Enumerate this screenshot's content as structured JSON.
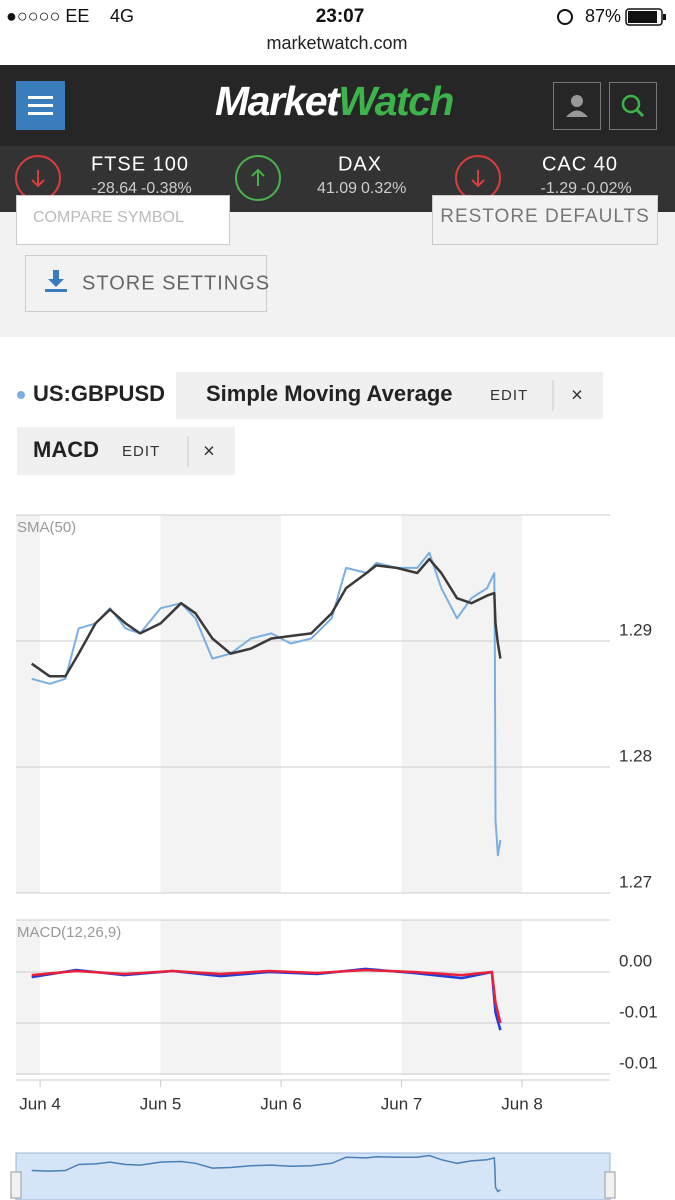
{
  "status_bar": {
    "carrier": "●○○○○ EE",
    "network": "4G",
    "time": "23:07",
    "battery": "87%"
  },
  "url": "marketwatch.com",
  "header": {
    "logo_market": "Market",
    "logo_watch": "Watch"
  },
  "indices": [
    {
      "name": "FTSE 100",
      "change": "-28.64",
      "percent": "-0.38%",
      "direction": "down"
    },
    {
      "name": "DAX",
      "change": "41.09",
      "percent": "0.32%",
      "direction": "up"
    },
    {
      "name": "CAC 40",
      "change": "-1.29",
      "percent": "-0.02%",
      "direction": "down"
    }
  ],
  "controls": {
    "compare": "COMPARE SYMBOL",
    "restore": "RESTORE DEFAULTS",
    "store": "STORE SETTINGS"
  },
  "studies": [
    {
      "edit": "EDIT",
      "close": "×"
    },
    {
      "name": "MACD",
      "edit": "EDIT",
      "close": "×"
    }
  ],
  "chart_data": [
    {
      "type": "line",
      "label": "SMA(50)",
      "x": [
        3.93,
        4.08,
        4.21,
        4.32,
        4.46,
        4.58,
        4.71,
        4.83,
        5.0,
        5.17,
        5.29,
        5.43,
        5.58,
        5.75,
        5.92,
        6.08,
        6.25,
        6.42,
        6.54,
        6.71,
        6.79,
        6.96,
        7.13,
        7.23,
        7.33,
        7.46,
        7.58,
        7.71,
        7.77,
        7.775,
        7.78,
        7.8,
        7.82
      ],
      "series": [
        {
          "name": "US:GBPUSD",
          "color": "#7aafe3",
          "values": [
            1.287,
            1.2866,
            1.287,
            1.291,
            1.2914,
            1.2926,
            1.291,
            1.2906,
            1.2926,
            1.293,
            1.2918,
            1.2886,
            1.289,
            1.2902,
            1.2906,
            1.2898,
            1.2902,
            1.2918,
            1.2958,
            1.2954,
            1.2962,
            1.2958,
            1.2958,
            1.297,
            1.2942,
            1.2918,
            1.2934,
            1.2942,
            1.2954,
            1.2886,
            1.2758,
            1.273,
            1.2742
          ]
        },
        {
          "name": "Simple Moving Average",
          "color": "#3a3a3a",
          "values": [
            1.2882,
            1.2872,
            1.2872,
            1.289,
            1.2914,
            1.2925,
            1.2914,
            1.2906,
            1.2914,
            1.293,
            1.2922,
            1.2902,
            1.289,
            1.2894,
            1.2902,
            1.2904,
            1.2906,
            1.2922,
            1.2942,
            1.2954,
            1.296,
            1.2958,
            1.2954,
            1.2965,
            1.2954,
            1.2934,
            1.293,
            1.2936,
            1.2938,
            1.2926,
            1.2914,
            1.2898,
            1.2886
          ]
        }
      ],
      "xlim": [
        3.8,
        8.73
      ],
      "ylim": [
        1.27,
        1.3
      ],
      "yticks": [
        1.27,
        1.28,
        1.29
      ],
      "grid": true
    },
    {
      "type": "line",
      "label": "MACD(12,26,9)",
      "x": [
        3.93,
        4.3,
        4.7,
        5.1,
        5.5,
        5.9,
        6.3,
        6.7,
        7.1,
        7.5,
        7.75,
        7.78,
        7.82
      ],
      "series": [
        {
          "color": "#1f3fd6",
          "values": [
            -0.0005,
            0.0002,
            -0.0003,
            0.0001,
            -0.0004,
            0,
            -0.0002,
            0.0003,
            -0.0001,
            -0.0006,
            0,
            -0.004,
            -0.0057
          ]
        },
        {
          "color": "#e8203a",
          "values": [
            -0.0003,
            0.0001,
            -0.0002,
            0.0001,
            -0.0002,
            0.0001,
            -0.0001,
            0.0002,
            0,
            -0.0003,
            0,
            -0.003,
            -0.005
          ]
        }
      ],
      "xlim": [
        3.8,
        8.73
      ],
      "xticks": [
        {
          "value": 4,
          "label": "Jun 4"
        },
        {
          "value": 5,
          "label": "Jun 5"
        },
        {
          "value": 6,
          "label": "Jun 6"
        },
        {
          "value": 7,
          "label": "Jun 7"
        },
        {
          "value": 8,
          "label": "Jun 8"
        }
      ],
      "ylim": [
        -0.0101,
        0.0051
      ],
      "yticks": [
        {
          "value": 0,
          "label": "0.00"
        },
        {
          "value": -0.005,
          "label": "-0.01"
        },
        {
          "value": -0.01,
          "label": "-0.01"
        }
      ],
      "grid": true
    }
  ]
}
